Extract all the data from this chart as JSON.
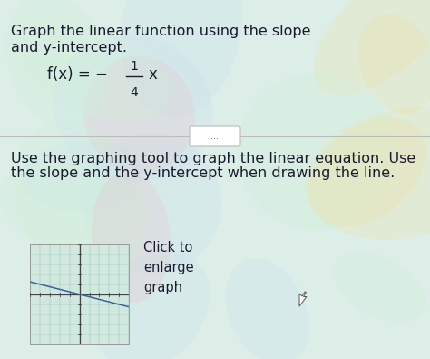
{
  "bg_color": "#ddeee8",
  "text_color": "#1a1a2e",
  "title_text_line1": "Graph the linear function using the slope",
  "title_text_line2": "and y-intercept.",
  "body_text_line1": "Use the graphing tool to graph the linear equation. Use",
  "body_text_line2": "the slope and the y-intercept when drawing the line.",
  "graph_label": "Click to\nenlarge\ngraph",
  "graph_bg": "#d0e8e0",
  "divider_color": "#bbbbbb",
  "btn_text": "...",
  "wave_colors": [
    "#f0e0a0",
    "#e8c0c8",
    "#c8e0f0",
    "#d0f0d8"
  ],
  "title_fontsize": 11.5,
  "body_fontsize": 11.5,
  "formula_fontsize": 12
}
